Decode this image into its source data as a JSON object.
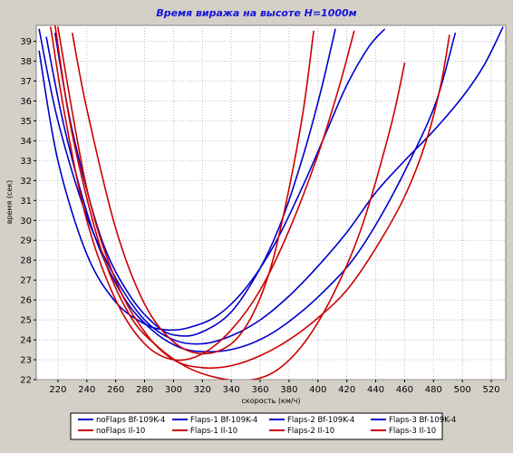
{
  "chart_data": {
    "type": "line",
    "title": "Время виража на высоте H=1000м",
    "xlabel": "скорость (км/ч)",
    "ylabel": "время (сек)",
    "xlim": [
      205,
      530
    ],
    "ylim": [
      22,
      39.8
    ],
    "xticks": [
      220,
      240,
      260,
      280,
      300,
      320,
      340,
      360,
      380,
      400,
      420,
      440,
      460,
      480,
      500,
      520
    ],
    "yticks": [
      22,
      23,
      24,
      25,
      26,
      27,
      28,
      29,
      30,
      31,
      32,
      33,
      34,
      35,
      36,
      37,
      38,
      39
    ],
    "grid": true,
    "legend_position": "bottom",
    "colors": {
      "blue": "#0000cc",
      "red": "#cc0000",
      "title": "#1515d8",
      "plot_bg": "#ffffff",
      "frame": "#d4d0c8"
    },
    "series": [
      {
        "name": "noFlaps Bf-109K-4",
        "color": "#0000cc",
        "x": [
          207,
          220,
          240,
          260,
          280,
          295,
          310,
          330,
          350,
          370,
          390,
          405,
          420,
          435,
          446
        ],
        "y": [
          38.5,
          33.0,
          28.3,
          25.9,
          24.8,
          24.5,
          24.6,
          25.2,
          26.6,
          28.8,
          31.8,
          34.3,
          36.8,
          38.7,
          39.6
        ]
      },
      {
        "name": "Flaps-1 Bf-109K-4",
        "color": "#0000cc",
        "x": [
          207,
          220,
          240,
          260,
          280,
          300,
          320,
          340,
          360,
          380,
          400,
          420,
          440,
          460,
          480,
          500,
          515,
          528
        ],
        "y": [
          39.6,
          35.0,
          30.2,
          27.1,
          25.0,
          24.0,
          23.8,
          24.2,
          25.0,
          26.2,
          27.7,
          29.4,
          31.4,
          33.0,
          34.5,
          36.2,
          37.8,
          39.7
        ]
      },
      {
        "name": "Flaps-2 Bf-109K-4",
        "color": "#0000cc",
        "x": [
          212,
          225,
          245,
          265,
          285,
          305,
          325,
          345,
          365,
          385,
          405,
          425,
          445,
          465,
          482,
          495
        ],
        "y": [
          39.2,
          34.5,
          29.3,
          26.2,
          24.5,
          23.6,
          23.4,
          23.6,
          24.2,
          25.2,
          26.5,
          28.1,
          30.4,
          33.2,
          36.0,
          39.4
        ]
      },
      {
        "name": "Flaps-3 Bf-109K-4",
        "color": "#0000cc",
        "x": [
          218,
          230,
          250,
          270,
          290,
          305,
          320,
          340,
          360,
          375,
          390,
          402,
          412
        ],
        "y": [
          39.4,
          34.5,
          29.1,
          26.2,
          24.6,
          24.2,
          24.4,
          25.4,
          27.6,
          30.0,
          33.3,
          36.5,
          39.6
        ]
      },
      {
        "name": "noFlaps Il-10",
        "color": "#cc0000",
        "x": [
          230,
          240,
          260,
          280,
          300,
          320,
          340,
          355,
          368,
          380,
          390,
          397
        ],
        "y": [
          39.4,
          35.6,
          29.6,
          25.8,
          23.9,
          23.3,
          23.8,
          25.3,
          27.8,
          31.6,
          35.6,
          39.5
        ]
      },
      {
        "name": "Flaps-1 Il-10",
        "color": "#cc0000",
        "x": [
          220,
          240,
          260,
          280,
          300,
          320,
          340,
          360,
          380,
          400,
          420,
          440,
          460,
          475,
          485,
          491
        ],
        "y": [
          39.7,
          31.6,
          27.0,
          24.4,
          23.0,
          22.6,
          22.7,
          23.2,
          24.0,
          25.1,
          26.5,
          28.6,
          31.2,
          34.0,
          36.8,
          39.3
        ]
      },
      {
        "name": "Flaps-2 Il-10",
        "color": "#cc0000",
        "x": [
          215,
          225,
          240,
          260,
          280,
          300,
          320,
          340,
          360,
          380,
          400,
          415,
          425
        ],
        "y": [
          39.7,
          35.2,
          30.0,
          26.0,
          23.8,
          23.0,
          23.3,
          24.5,
          26.5,
          29.5,
          33.3,
          36.8,
          39.5
        ]
      },
      {
        "name": "Flaps-3 Il-10",
        "color": "#cc0000",
        "x": [
          218,
          230,
          250,
          270,
          290,
          310,
          330,
          350,
          370,
          390,
          410,
          430,
          450,
          460
        ],
        "y": [
          39.8,
          34.3,
          28.5,
          25.2,
          23.6,
          22.6,
          22.1,
          21.95,
          22.4,
          23.8,
          26.2,
          29.6,
          34.6,
          37.9
        ]
      }
    ]
  }
}
